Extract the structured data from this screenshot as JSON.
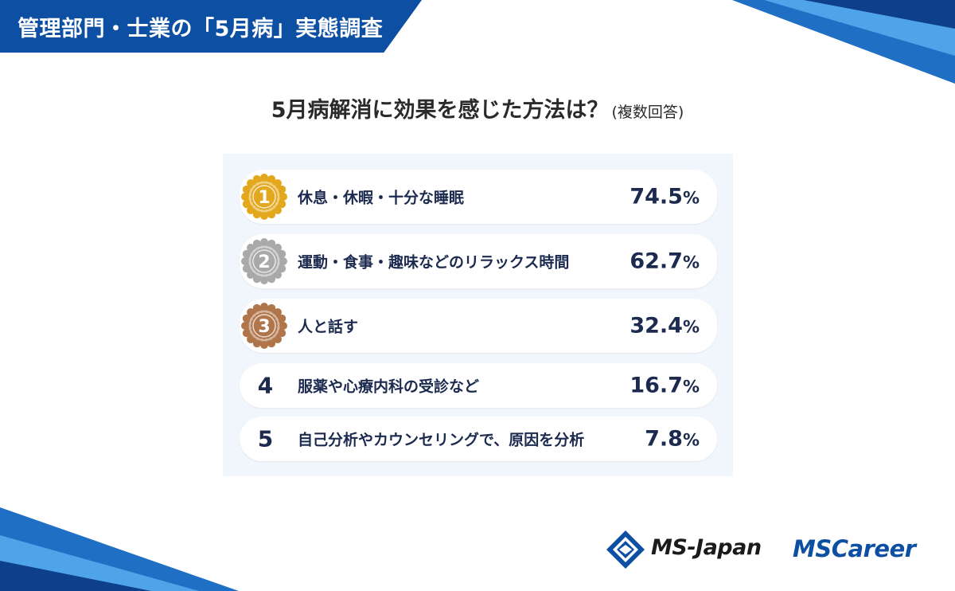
{
  "header": {
    "title": "管理部門・士業の「5月病」実態調査"
  },
  "question": {
    "title": "5月病解消に効果を感じた方法は？",
    "note": "(複数回答)"
  },
  "ranking": [
    {
      "rank": "1",
      "medal": "gold",
      "label": "休息・休暇・十分な睡眠",
      "value": "74.5",
      "unit": "%"
    },
    {
      "rank": "2",
      "medal": "silver",
      "label": "運動・食事・趣味などのリラックス時間",
      "value": "62.7",
      "unit": "%"
    },
    {
      "rank": "3",
      "medal": "bronze",
      "label": "人と話す",
      "value": "32.4",
      "unit": "%"
    },
    {
      "rank": "4",
      "medal": "",
      "label": "服薬や心療内科の受診など",
      "value": "16.7",
      "unit": "%"
    },
    {
      "rank": "5",
      "medal": "",
      "label": "自己分析やカウンセリングで、原因を分析",
      "value": "7.8",
      "unit": "%"
    }
  ],
  "colors": {
    "brand_blue": "#0d4fa3",
    "text_navy": "#1b2a4e",
    "gold": "#e3a81e",
    "silver": "#a9a9a9",
    "bronze": "#b0754a",
    "panel_bg": "#f1f6fc"
  },
  "logos": {
    "ms_japan": "MS-Japan",
    "ms_career": "MSCareer"
  },
  "icons": {
    "medal": "laurel-medal-icon",
    "logo_mark": "ms-japan-diamond-icon"
  }
}
